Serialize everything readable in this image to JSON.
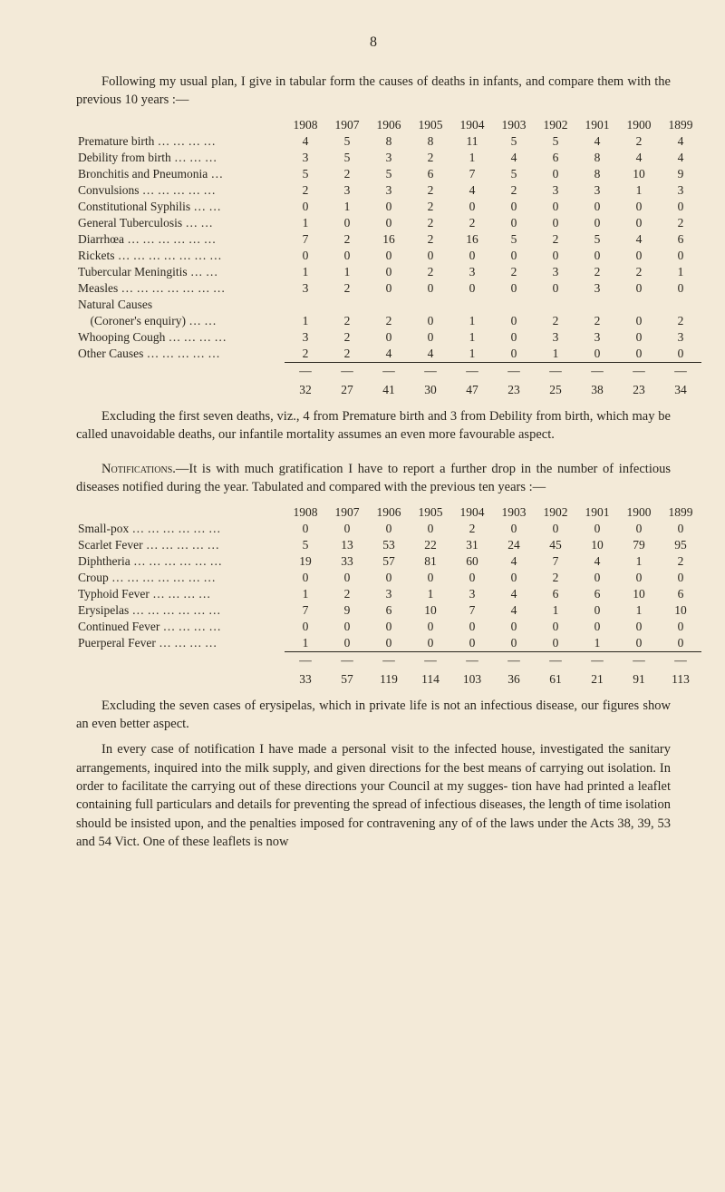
{
  "page_number": "8",
  "intro_para_1": "Following my usual plan, I give in tabular form the causes of deaths in infants, and compare them with the previous 10 years :—",
  "years": [
    "1908",
    "1907",
    "1906",
    "1905",
    "1904",
    "1903",
    "1902",
    "1901",
    "1900",
    "1899"
  ],
  "table1": {
    "rows": [
      {
        "label": "Premature birth … … … …",
        "v": [
          "4",
          "5",
          "8",
          "8",
          "11",
          "5",
          "5",
          "4",
          "2",
          "4"
        ]
      },
      {
        "label": "Debility from birth … … …",
        "v": [
          "3",
          "5",
          "3",
          "2",
          "1",
          "4",
          "6",
          "8",
          "4",
          "4"
        ]
      },
      {
        "label": "Bronchitis and Pneumonia …",
        "v": [
          "5",
          "2",
          "5",
          "6",
          "7",
          "5",
          "0",
          "8",
          "10",
          "9"
        ]
      },
      {
        "label": "Convulsions … … … … …",
        "v": [
          "2",
          "3",
          "3",
          "2",
          "4",
          "2",
          "3",
          "3",
          "1",
          "3"
        ]
      },
      {
        "label": "Constitutional Syphilis … …",
        "v": [
          "0",
          "1",
          "0",
          "2",
          "0",
          "0",
          "0",
          "0",
          "0",
          "0"
        ]
      },
      {
        "label": "General Tuberculosis … …",
        "v": [
          "1",
          "0",
          "0",
          "2",
          "2",
          "0",
          "0",
          "0",
          "0",
          "2"
        ]
      },
      {
        "label": "Diarrhœa … … … … … …",
        "v": [
          "7",
          "2",
          "16",
          "2",
          "16",
          "5",
          "2",
          "5",
          "4",
          "6"
        ]
      },
      {
        "label": "Rickets … … … … … … …",
        "v": [
          "0",
          "0",
          "0",
          "0",
          "0",
          "0",
          "0",
          "0",
          "0",
          "0"
        ]
      },
      {
        "label": "Tubercular Meningitis … …",
        "v": [
          "1",
          "1",
          "0",
          "2",
          "3",
          "2",
          "3",
          "2",
          "2",
          "1"
        ]
      },
      {
        "label": "Measles … … … … … … …",
        "v": [
          "3",
          "2",
          "0",
          "0",
          "0",
          "0",
          "0",
          "3",
          "0",
          "0"
        ]
      },
      {
        "label": "Natural Causes",
        "v": [
          "",
          "",
          "",
          "",
          "",
          "",
          "",
          "",
          "",
          ""
        ]
      },
      {
        "label": "    (Coroner's enquiry) … …",
        "v": [
          "1",
          "2",
          "2",
          "0",
          "1",
          "0",
          "2",
          "2",
          "0",
          "2"
        ]
      },
      {
        "label": "Whooping Cough … … … …",
        "v": [
          "3",
          "2",
          "0",
          "0",
          "1",
          "0",
          "3",
          "3",
          "0",
          "3"
        ]
      },
      {
        "label": "Other Causes … … … … …",
        "v": [
          "2",
          "2",
          "4",
          "4",
          "1",
          "0",
          "1",
          "0",
          "0",
          "0"
        ]
      }
    ],
    "totals": [
      "32",
      "27",
      "41",
      "30",
      "47",
      "23",
      "25",
      "38",
      "23",
      "34"
    ]
  },
  "para_after_table1": "Excluding the first seven deaths, viz., 4 from Premature birth and 3 from Debility from birth, which may be called unavoidable deaths, our infantile mortality assumes an even more favourable aspect.",
  "notifications_lead": "Notifications.",
  "notifications_body": "—It is with much gratification I have to report a further drop in the number of infectious diseases notified during the year. Tabulated and compared with the previous ten years :—",
  "table2": {
    "rows": [
      {
        "label": "Small-pox … … … … … …",
        "v": [
          "0",
          "0",
          "0",
          "0",
          "2",
          "0",
          "0",
          "0",
          "0",
          "0"
        ]
      },
      {
        "label": "Scarlet Fever … … … … …",
        "v": [
          "5",
          "13",
          "53",
          "22",
          "31",
          "24",
          "45",
          "10",
          "79",
          "95"
        ]
      },
      {
        "label": "Diphtheria … … … … … …",
        "v": [
          "19",
          "33",
          "57",
          "81",
          "60",
          "4",
          "7",
          "4",
          "1",
          "2"
        ]
      },
      {
        "label": "Croup … … … … … … …",
        "v": [
          "0",
          "0",
          "0",
          "0",
          "0",
          "0",
          "2",
          "0",
          "0",
          "0"
        ]
      },
      {
        "label": "Typhoid Fever … … … …",
        "v": [
          "1",
          "2",
          "3",
          "1",
          "3",
          "4",
          "6",
          "6",
          "10",
          "6"
        ]
      },
      {
        "label": "Erysipelas … … … … … …",
        "v": [
          "7",
          "9",
          "6",
          "10",
          "7",
          "4",
          "1",
          "0",
          "1",
          "10"
        ]
      },
      {
        "label": "Continued Fever … … … …",
        "v": [
          "0",
          "0",
          "0",
          "0",
          "0",
          "0",
          "0",
          "0",
          "0",
          "0"
        ]
      },
      {
        "label": "Puerperal Fever … … … …",
        "v": [
          "1",
          "0",
          "0",
          "0",
          "0",
          "0",
          "0",
          "1",
          "0",
          "0"
        ]
      }
    ],
    "totals": [
      "33",
      "57",
      "119",
      "114",
      "103",
      "36",
      "61",
      "21",
      "91",
      "113"
    ]
  },
  "para_after_table2": "Excluding the seven cases of erysipelas, which in private life is not an infectious disease, our figures show an even better aspect.",
  "final_para": "In every case of notification I have made a personal visit to the infected house, investigated the sanitary arrangements, inquired into the milk supply, and given directions for the best means of carrying out isolation. In order to facilitate the carrying out of these directions your Council at my sugges- tion have had printed a leaflet containing full particulars and details for preventing the spread of infectious diseases, the length of time isolation should be insisted upon, and the penalties imposed for contravening any of of the laws under the Acts 38, 39, 53 and 54 Vict. One of these leaflets is now"
}
